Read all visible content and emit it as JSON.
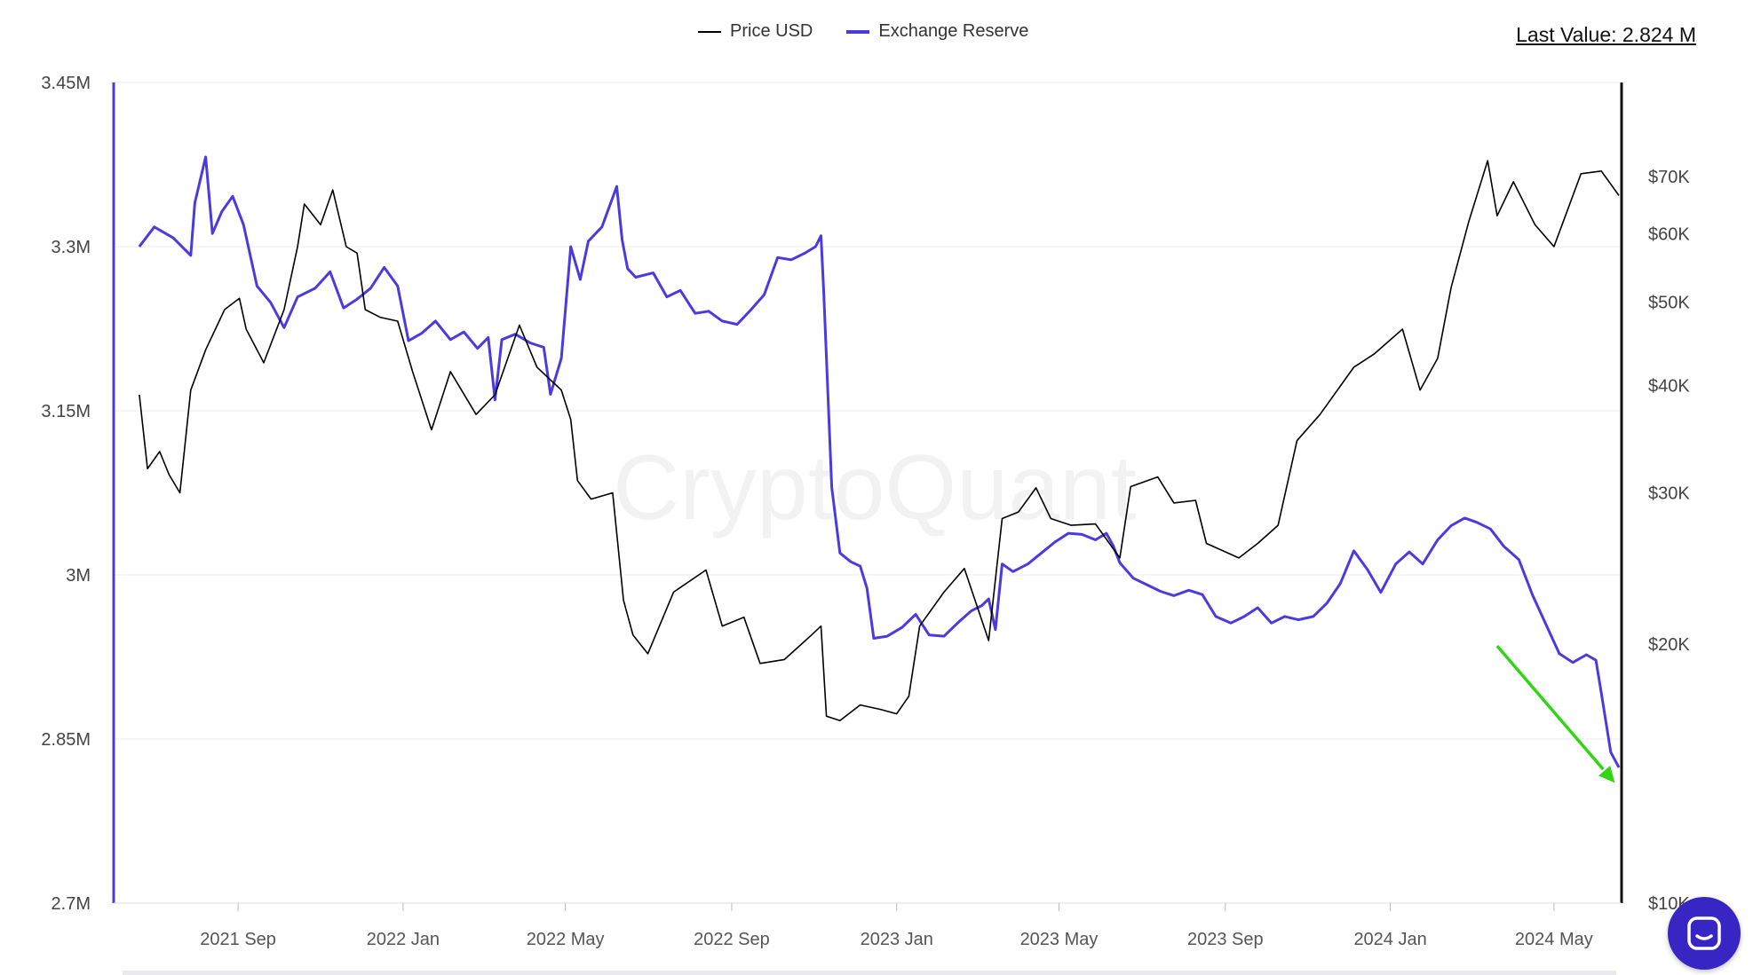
{
  "header": {
    "last_value_label": "Last Value: 2.824 M"
  },
  "watermark": "CryptoQuant",
  "colors": {
    "price": "#000000",
    "reserve": "#4a3be0",
    "arrow": "#33d417",
    "grid": "#eeeeee",
    "chat_button": "#3725c4"
  },
  "chat_button": {
    "icon": "chat-bubble-icon"
  },
  "chart_data": {
    "type": "line",
    "legend": [
      "Price USD",
      "Exchange Reserve"
    ],
    "legend_position": "top-center",
    "grid": true,
    "x_ticks": [
      {
        "date": "2021-09-01",
        "label": "2021 Sep"
      },
      {
        "date": "2022-01-01",
        "label": "2022 Jan"
      },
      {
        "date": "2022-05-01",
        "label": "2022 May"
      },
      {
        "date": "2022-09-01",
        "label": "2022 Sep"
      },
      {
        "date": "2023-01-01",
        "label": "2023 Jan"
      },
      {
        "date": "2023-05-01",
        "label": "2023 May"
      },
      {
        "date": "2023-09-01",
        "label": "2023 Sep"
      },
      {
        "date": "2024-01-01",
        "label": "2024 Jan"
      },
      {
        "date": "2024-05-01",
        "label": "2024 May"
      }
    ],
    "x_range": [
      "2021-06-01",
      "2024-06-20"
    ],
    "y_left": {
      "series": "Exchange Reserve",
      "range": [
        2700000,
        3450000
      ],
      "ticks": [
        {
          "value": 3450000,
          "label": "3.45M"
        },
        {
          "value": 3300000,
          "label": "3.3M"
        },
        {
          "value": 3150000,
          "label": "3.15M"
        },
        {
          "value": 3000000,
          "label": "3M"
        },
        {
          "value": 2850000,
          "label": "2.85M"
        },
        {
          "value": 2700000,
          "label": "2.7M"
        }
      ]
    },
    "y_right": {
      "series": "Price USD",
      "scale": "log",
      "range": [
        10000,
        90000
      ],
      "ticks": [
        {
          "value": 70000,
          "label": "$70K"
        },
        {
          "value": 60000,
          "label": "$60K"
        },
        {
          "value": 50000,
          "label": "$50K"
        },
        {
          "value": 40000,
          "label": "$40K"
        },
        {
          "value": 30000,
          "label": "$30K"
        },
        {
          "value": 20000,
          "label": "$20K"
        },
        {
          "value": 10000,
          "label": "$10K"
        }
      ]
    },
    "series": [
      {
        "name": "Exchange Reserve",
        "axis": "left",
        "points": [
          [
            "2021-06-20",
            3300000
          ],
          [
            "2021-07-01",
            3318000
          ],
          [
            "2021-07-15",
            3308000
          ],
          [
            "2021-07-28",
            3292000
          ],
          [
            "2021-07-31",
            3340000
          ],
          [
            "2021-08-08",
            3382000
          ],
          [
            "2021-08-13",
            3312000
          ],
          [
            "2021-08-20",
            3332000
          ],
          [
            "2021-08-28",
            3346000
          ],
          [
            "2021-09-05",
            3320000
          ],
          [
            "2021-09-15",
            3264000
          ],
          [
            "2021-09-25",
            3249000
          ],
          [
            "2021-10-05",
            3226000
          ],
          [
            "2021-10-15",
            3254000
          ],
          [
            "2021-10-28",
            3262000
          ],
          [
            "2021-11-08",
            3277000
          ],
          [
            "2021-11-18",
            3244000
          ],
          [
            "2021-11-28",
            3252000
          ],
          [
            "2021-12-08",
            3262000
          ],
          [
            "2021-12-18",
            3281000
          ],
          [
            "2021-12-28",
            3264000
          ],
          [
            "2022-01-05",
            3214000
          ],
          [
            "2022-01-15",
            3221000
          ],
          [
            "2022-01-25",
            3232000
          ],
          [
            "2022-02-05",
            3215000
          ],
          [
            "2022-02-15",
            3222000
          ],
          [
            "2022-02-25",
            3207000
          ],
          [
            "2022-03-05",
            3217000
          ],
          [
            "2022-03-10",
            3160000
          ],
          [
            "2022-03-15",
            3215000
          ],
          [
            "2022-03-25",
            3220000
          ],
          [
            "2022-04-05",
            3212000
          ],
          [
            "2022-04-15",
            3208000
          ],
          [
            "2022-04-20",
            3165000
          ],
          [
            "2022-04-28",
            3198000
          ],
          [
            "2022-05-05",
            3300000
          ],
          [
            "2022-05-12",
            3270000
          ],
          [
            "2022-05-18",
            3305000
          ],
          [
            "2022-05-28",
            3318000
          ],
          [
            "2022-06-08",
            3355000
          ],
          [
            "2022-06-12",
            3306000
          ],
          [
            "2022-06-16",
            3280000
          ],
          [
            "2022-06-22",
            3272000
          ],
          [
            "2022-07-05",
            3276000
          ],
          [
            "2022-07-15",
            3254000
          ],
          [
            "2022-07-25",
            3260000
          ],
          [
            "2022-08-05",
            3239000
          ],
          [
            "2022-08-15",
            3241000
          ],
          [
            "2022-08-25",
            3232000
          ],
          [
            "2022-09-05",
            3229000
          ],
          [
            "2022-09-15",
            3242000
          ],
          [
            "2022-09-25",
            3256000
          ],
          [
            "2022-10-05",
            3290000
          ],
          [
            "2022-10-15",
            3288000
          ],
          [
            "2022-10-25",
            3294000
          ],
          [
            "2022-11-02",
            3300000
          ],
          [
            "2022-11-06",
            3310000
          ],
          [
            "2022-11-08",
            3260000
          ],
          [
            "2022-11-14",
            3080000
          ],
          [
            "2022-11-20",
            3020000
          ],
          [
            "2022-11-28",
            3012000
          ],
          [
            "2022-12-05",
            3008000
          ],
          [
            "2022-12-10",
            2988000
          ],
          [
            "2022-12-15",
            2942000
          ],
          [
            "2022-12-25",
            2944000
          ],
          [
            "2023-01-05",
            2952000
          ],
          [
            "2023-01-15",
            2964000
          ],
          [
            "2023-01-25",
            2945000
          ],
          [
            "2023-02-05",
            2944000
          ],
          [
            "2023-02-15",
            2956000
          ],
          [
            "2023-02-25",
            2967000
          ],
          [
            "2023-03-05",
            2972000
          ],
          [
            "2023-03-10",
            2978000
          ],
          [
            "2023-03-15",
            2950000
          ],
          [
            "2023-03-20",
            3010000
          ],
          [
            "2023-03-28",
            3003000
          ],
          [
            "2023-04-08",
            3010000
          ],
          [
            "2023-04-18",
            3020000
          ],
          [
            "2023-04-28",
            3030000
          ],
          [
            "2023-05-08",
            3038000
          ],
          [
            "2023-05-18",
            3037000
          ],
          [
            "2023-05-28",
            3032000
          ],
          [
            "2023-06-05",
            3038000
          ],
          [
            "2023-06-10",
            3027000
          ],
          [
            "2023-06-15",
            3011000
          ],
          [
            "2023-06-25",
            2997000
          ],
          [
            "2023-07-05",
            2991000
          ],
          [
            "2023-07-15",
            2985000
          ],
          [
            "2023-07-25",
            2981000
          ],
          [
            "2023-08-05",
            2986000
          ],
          [
            "2023-08-15",
            2982000
          ],
          [
            "2023-08-25",
            2962000
          ],
          [
            "2023-09-05",
            2956000
          ],
          [
            "2023-09-15",
            2962000
          ],
          [
            "2023-09-25",
            2970000
          ],
          [
            "2023-10-05",
            2956000
          ],
          [
            "2023-10-15",
            2962000
          ],
          [
            "2023-10-25",
            2959000
          ],
          [
            "2023-11-05",
            2962000
          ],
          [
            "2023-11-15",
            2974000
          ],
          [
            "2023-11-25",
            2992000
          ],
          [
            "2023-12-05",
            3022000
          ],
          [
            "2023-12-15",
            3005000
          ],
          [
            "2023-12-25",
            2984000
          ],
          [
            "2024-01-05",
            3010000
          ],
          [
            "2024-01-15",
            3021000
          ],
          [
            "2024-01-25",
            3010000
          ],
          [
            "2024-02-05",
            3032000
          ],
          [
            "2024-02-15",
            3045000
          ],
          [
            "2024-02-25",
            3052000
          ],
          [
            "2024-03-05",
            3048000
          ],
          [
            "2024-03-15",
            3042000
          ],
          [
            "2024-03-25",
            3026000
          ],
          [
            "2024-04-05",
            3014000
          ],
          [
            "2024-04-15",
            2982000
          ],
          [
            "2024-04-25",
            2955000
          ],
          [
            "2024-05-05",
            2928000
          ],
          [
            "2024-05-15",
            2920000
          ],
          [
            "2024-05-25",
            2927000
          ],
          [
            "2024-06-01",
            2922000
          ],
          [
            "2024-06-05",
            2892000
          ],
          [
            "2024-06-12",
            2838000
          ],
          [
            "2024-06-18",
            2824000
          ]
        ]
      },
      {
        "name": "Price USD",
        "axis": "right",
        "points": [
          [
            "2021-06-20",
            39000
          ],
          [
            "2021-06-26",
            32000
          ],
          [
            "2021-07-05",
            33500
          ],
          [
            "2021-07-12",
            31500
          ],
          [
            "2021-07-20",
            30000
          ],
          [
            "2021-07-28",
            39500
          ],
          [
            "2021-08-08",
            44000
          ],
          [
            "2021-08-22",
            49000
          ],
          [
            "2021-09-02",
            50500
          ],
          [
            "2021-09-07",
            46500
          ],
          [
            "2021-09-20",
            42500
          ],
          [
            "2021-10-05",
            49000
          ],
          [
            "2021-10-15",
            58000
          ],
          [
            "2021-10-20",
            65000
          ],
          [
            "2021-11-01",
            61500
          ],
          [
            "2021-11-10",
            67500
          ],
          [
            "2021-11-20",
            58000
          ],
          [
            "2021-11-28",
            57000
          ],
          [
            "2021-12-04",
            49000
          ],
          [
            "2021-12-15",
            48000
          ],
          [
            "2021-12-28",
            47500
          ],
          [
            "2022-01-08",
            41500
          ],
          [
            "2022-01-22",
            35500
          ],
          [
            "2022-02-05",
            41500
          ],
          [
            "2022-02-24",
            37000
          ],
          [
            "2022-03-10",
            39000
          ],
          [
            "2022-03-28",
            47000
          ],
          [
            "2022-04-10",
            42000
          ],
          [
            "2022-04-28",
            39500
          ],
          [
            "2022-05-05",
            36500
          ],
          [
            "2022-05-10",
            31000
          ],
          [
            "2022-05-20",
            29500
          ],
          [
            "2022-06-05",
            30000
          ],
          [
            "2022-06-13",
            22500
          ],
          [
            "2022-06-20",
            20500
          ],
          [
            "2022-07-01",
            19500
          ],
          [
            "2022-07-20",
            23000
          ],
          [
            "2022-08-13",
            24400
          ],
          [
            "2022-08-25",
            21000
          ],
          [
            "2022-09-10",
            21500
          ],
          [
            "2022-09-22",
            19000
          ],
          [
            "2022-10-10",
            19200
          ],
          [
            "2022-10-30",
            20500
          ],
          [
            "2022-11-06",
            21000
          ],
          [
            "2022-11-10",
            16500
          ],
          [
            "2022-11-20",
            16300
          ],
          [
            "2022-12-05",
            17000
          ],
          [
            "2022-12-20",
            16800
          ],
          [
            "2023-01-01",
            16600
          ],
          [
            "2023-01-10",
            17400
          ],
          [
            "2023-01-18",
            21000
          ],
          [
            "2023-02-05",
            23000
          ],
          [
            "2023-02-20",
            24500
          ],
          [
            "2023-03-10",
            20200
          ],
          [
            "2023-03-20",
            28000
          ],
          [
            "2023-04-01",
            28500
          ],
          [
            "2023-04-14",
            30400
          ],
          [
            "2023-04-25",
            28000
          ],
          [
            "2023-05-10",
            27500
          ],
          [
            "2023-05-28",
            27600
          ],
          [
            "2023-06-15",
            25200
          ],
          [
            "2023-06-23",
            30500
          ],
          [
            "2023-07-13",
            31300
          ],
          [
            "2023-07-25",
            29200
          ],
          [
            "2023-08-10",
            29400
          ],
          [
            "2023-08-18",
            26200
          ],
          [
            "2023-09-11",
            25200
          ],
          [
            "2023-09-25",
            26200
          ],
          [
            "2023-10-10",
            27500
          ],
          [
            "2023-10-24",
            34500
          ],
          [
            "2023-11-10",
            37000
          ],
          [
            "2023-12-05",
            42000
          ],
          [
            "2023-12-20",
            43500
          ],
          [
            "2024-01-10",
            46500
          ],
          [
            "2024-01-23",
            39500
          ],
          [
            "2024-02-05",
            43000
          ],
          [
            "2024-02-15",
            52000
          ],
          [
            "2024-02-28",
            62000
          ],
          [
            "2024-03-13",
            73000
          ],
          [
            "2024-03-20",
            63000
          ],
          [
            "2024-04-01",
            69000
          ],
          [
            "2024-04-17",
            61500
          ],
          [
            "2024-05-01",
            58000
          ],
          [
            "2024-05-21",
            70500
          ],
          [
            "2024-06-05",
            71000
          ],
          [
            "2024-06-18",
            66500
          ]
        ]
      }
    ],
    "annotations": [
      {
        "type": "arrow",
        "color": "#33d417",
        "from": [
          "2024-03-20",
          2935000
        ],
        "to": [
          "2024-06-15",
          2810000
        ]
      }
    ]
  }
}
